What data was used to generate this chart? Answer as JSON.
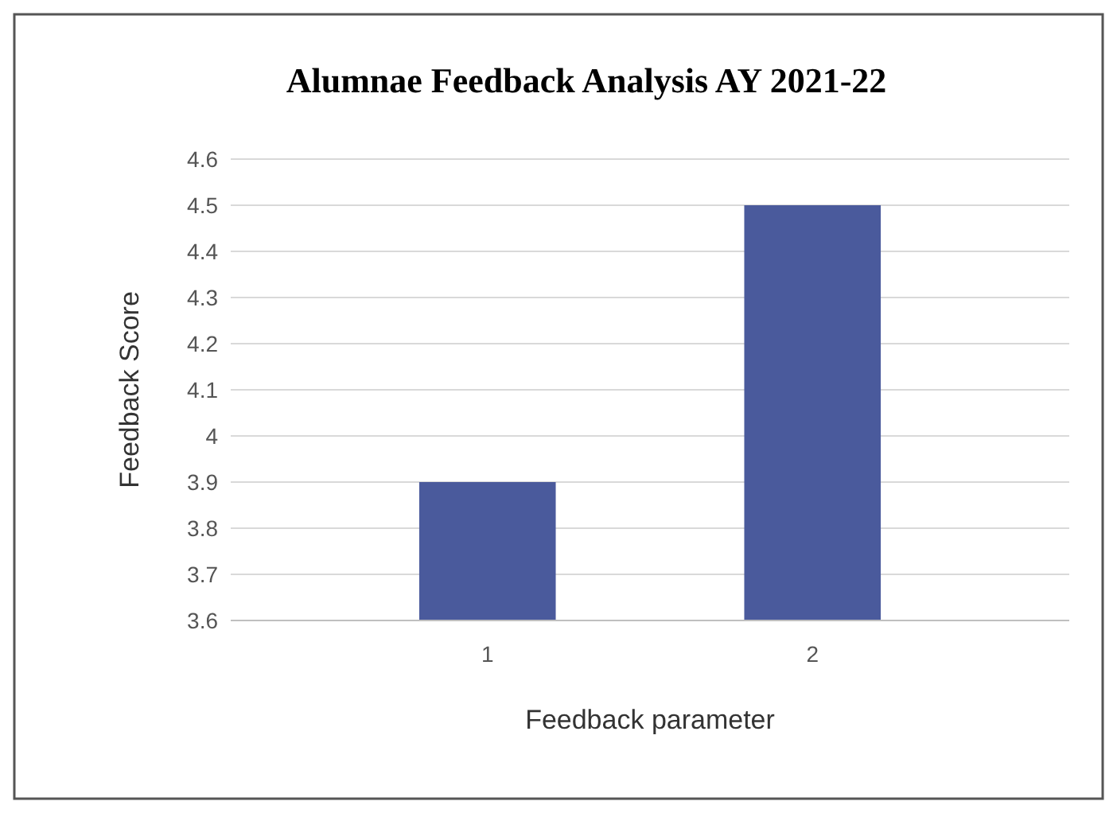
{
  "chart_data": {
    "type": "bar",
    "title": "Alumnae Feedback Analysis AY 2021-22",
    "xlabel": "Feedback parameter",
    "ylabel": "Feedback Score",
    "categories": [
      "1",
      "2"
    ],
    "values": [
      3.9,
      4.5
    ],
    "color": "#4a5a9c",
    "ylim": [
      3.6,
      4.6
    ],
    "yticks": [
      3.6,
      3.7,
      3.8,
      3.9,
      4,
      4.1,
      4.2,
      4.3,
      4.4,
      4.5,
      4.6
    ],
    "grid": "y"
  }
}
